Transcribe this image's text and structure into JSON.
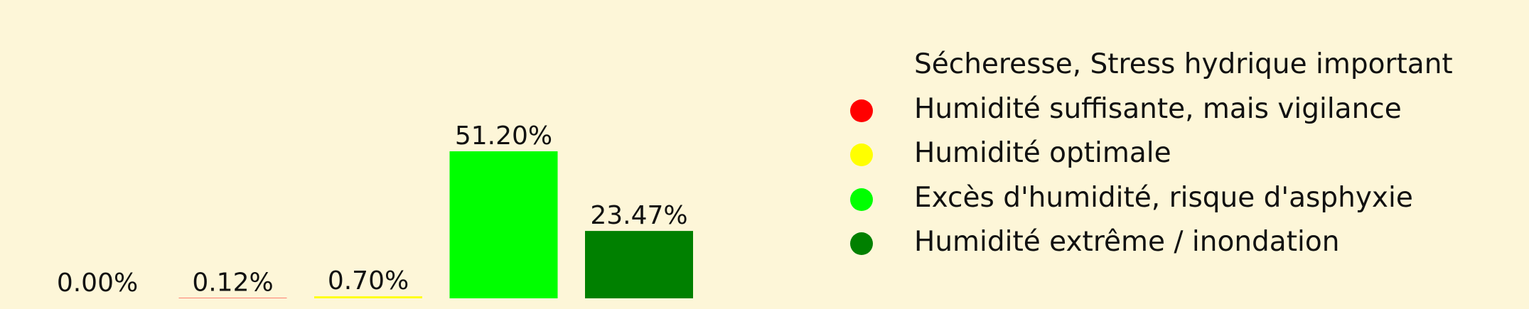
{
  "chart_data": {
    "type": "bar",
    "categories": [
      "Sécheresse, Stress hydrique important",
      "Humidité suffisante, mais vigilance",
      "Humidité optimale",
      "Excès d'humidité, risque d'asphyxie",
      "Humidité extrême / inondation"
    ],
    "values": [
      0.0,
      0.12,
      0.7,
      51.2,
      23.47
    ],
    "value_labels": [
      "0.00%",
      "0.12%",
      "0.70%",
      "51.20%",
      "23.47%"
    ],
    "colors": [
      "#fdf6d8",
      "#ff0000",
      "#ffff00",
      "#00ff00",
      "#008000"
    ],
    "legend_placement": "right",
    "grid": false
  }
}
